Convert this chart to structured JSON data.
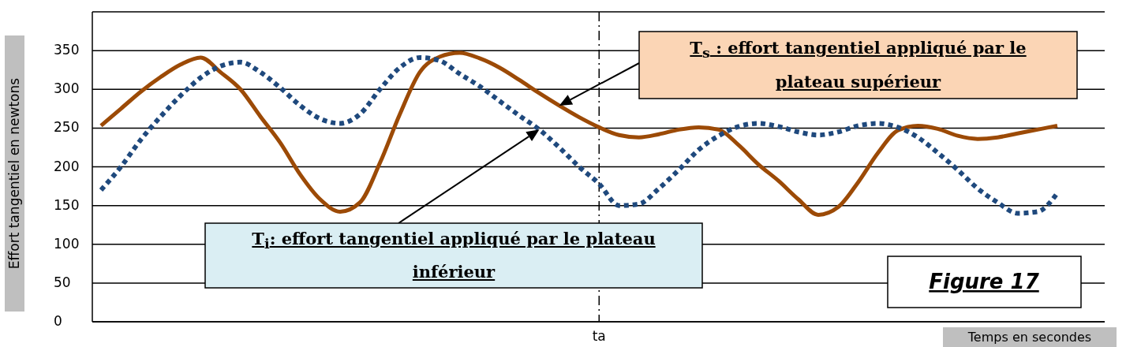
{
  "chart_data": {
    "type": "line",
    "ylabel": "Effort tangentiel en newtons",
    "xlabel": "Temps en secondes",
    "categories": [
      null,
      null,
      null,
      null,
      null,
      null,
      null,
      null,
      null,
      null,
      null,
      null,
      null,
      null,
      null,
      null,
      null,
      null,
      null,
      null,
      null,
      null,
      null,
      null,
      null,
      "ta",
      null,
      null,
      null,
      null,
      null,
      null,
      null,
      null,
      null,
      null,
      null,
      null,
      null,
      null,
      null,
      null,
      null,
      null,
      null,
      null,
      null,
      null,
      null
    ],
    "series": [
      {
        "name": "T$_{s}$ : effort tangentiel appliqué par le plateau supérieur",
        "color": "#9c4a06",
        "line_style": "solid",
        "values": [
          253,
          275,
          297,
          316,
          332,
          341,
          322,
          300,
          265,
          231,
          190,
          158,
          142,
          154,
          205,
          268,
          322,
          342,
          347,
          340,
          328,
          312,
          295,
          279,
          264,
          251,
          241,
          238,
          242,
          248,
          251,
          248,
          228,
          203,
          182,
          158,
          138,
          148,
          180,
          218,
          247,
          253,
          249,
          240,
          236,
          238,
          243,
          248,
          253
        ]
      },
      {
        "name": "T$_{i}$: effort tangentiel appliqué par le plateau inférieur",
        "color": "#1f497d",
        "line_style": "dotted",
        "values": [
          170,
          200,
          235,
          265,
          292,
          315,
          330,
          335,
          322,
          302,
          279,
          262,
          256,
          268,
          300,
          328,
          341,
          337,
          320,
          304,
          285,
          266,
          248,
          225,
          200,
          178,
          150,
          152,
          172,
          196,
          222,
          240,
          252,
          256,
          252,
          245,
          241,
          245,
          253,
          256,
          251,
          238,
          218,
          196,
          172,
          154,
          140,
          142,
          166
        ]
      }
    ],
    "ylim": [
      0,
      400
    ],
    "yticks": [
      0,
      50,
      100,
      150,
      200,
      250,
      300,
      350
    ],
    "grid": "y",
    "ref_lines": [
      {
        "axis": "x",
        "value": "ta",
        "line_style": "dashdot",
        "color": "#000000"
      }
    ],
    "annotations": [
      "Figure 17"
    ]
  }
}
